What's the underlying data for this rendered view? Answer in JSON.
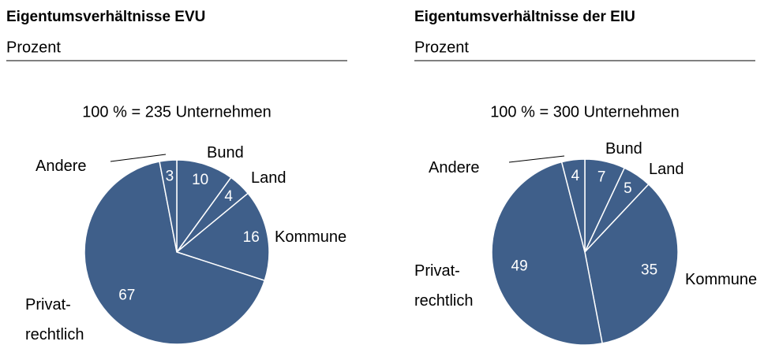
{
  "chart_data": [
    {
      "type": "pie",
      "title": "Eigentumsverhältnisse EVU",
      "subtitle": "Prozent",
      "annotation": "100 % = 235 Unternehmen",
      "categories": [
        "Bund",
        "Land",
        "Kommune",
        "Privat-\nrechtlich",
        "Andere"
      ],
      "values": [
        10,
        4,
        16,
        67,
        3
      ],
      "color": "#3f5f8a"
    },
    {
      "type": "pie",
      "title": "Eigentumsverhältnisse der EIU",
      "subtitle": "Prozent",
      "annotation": "100 % = 300 Unternehmen",
      "categories": [
        "Bund",
        "Land",
        "Kommune",
        "Privat-\nrechtlich",
        "Andere"
      ],
      "values": [
        7,
        5,
        35,
        49,
        4
      ],
      "color": "#3f5f8a"
    }
  ]
}
